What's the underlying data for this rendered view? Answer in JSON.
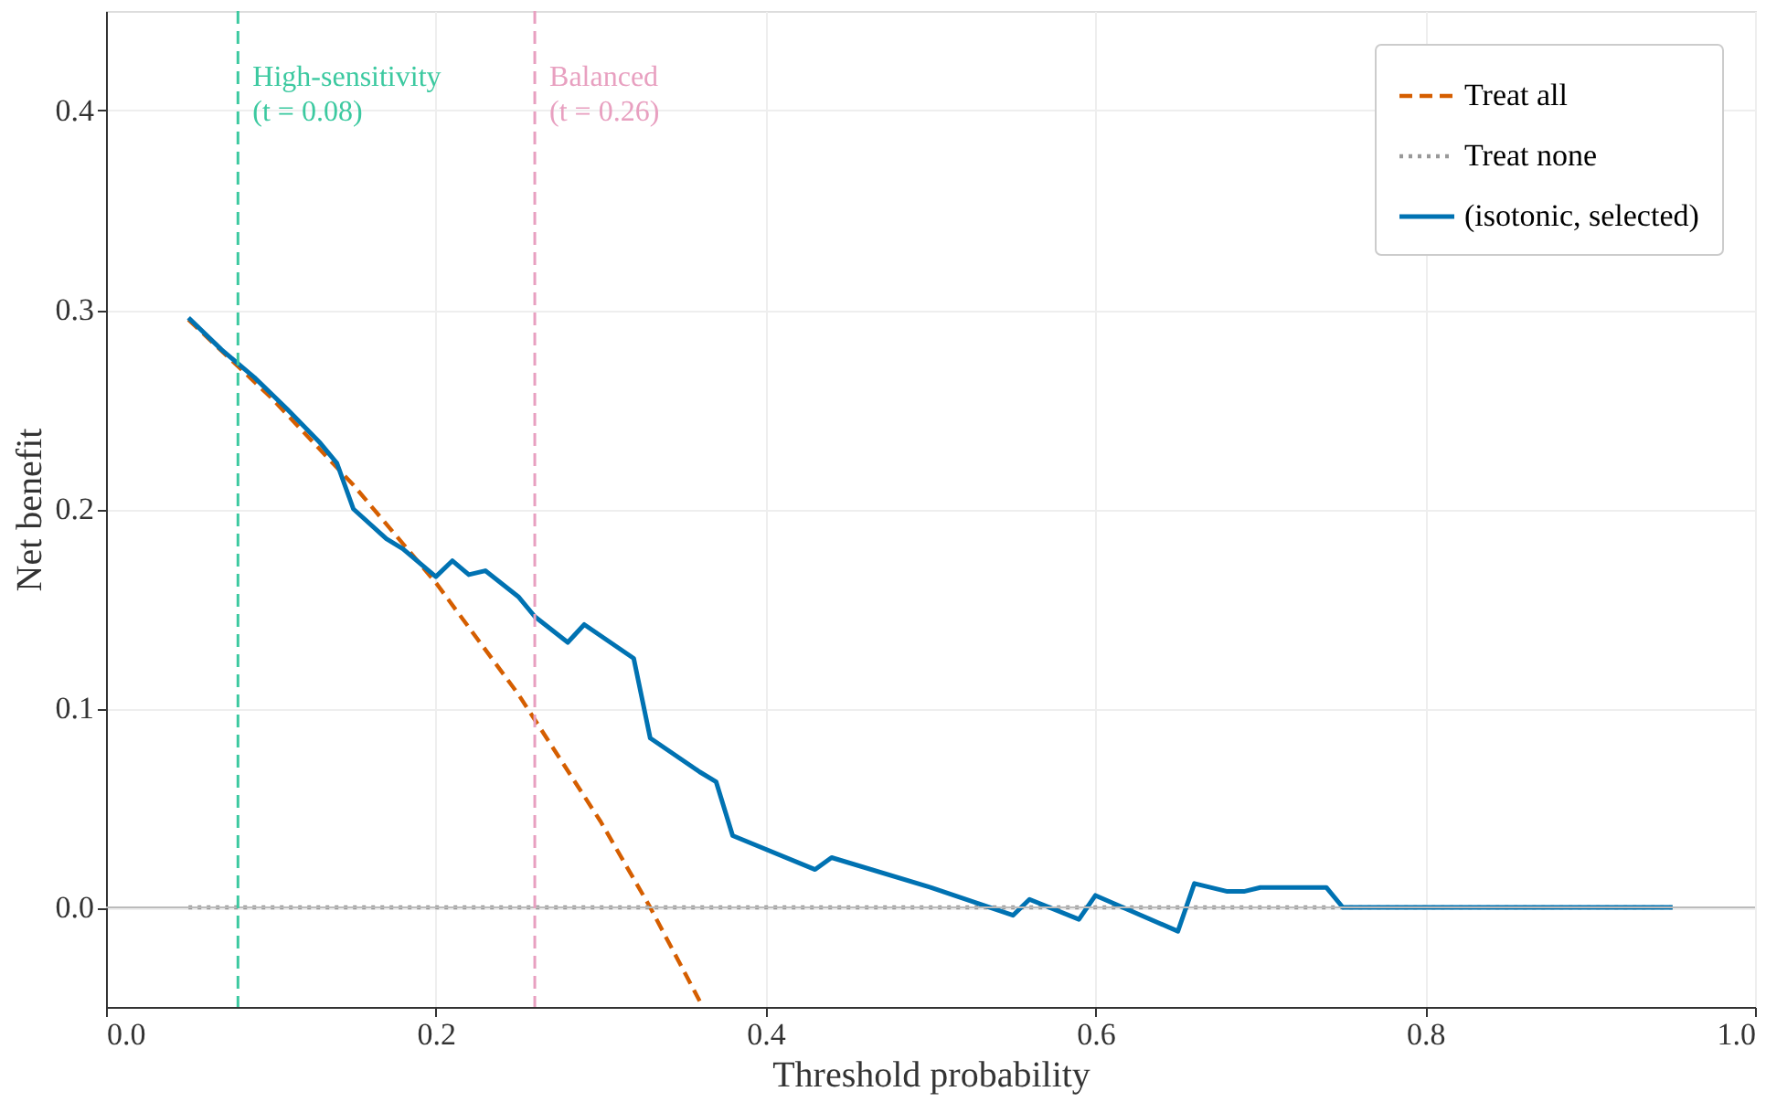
{
  "chart_data": {
    "type": "line",
    "xlabel": "Threshold probability",
    "ylabel": "Net benefit",
    "xlim": [
      0,
      1
    ],
    "xticks": [
      {
        "value": 0,
        "label": "0.0"
      },
      0.2,
      0.4,
      0.6,
      0.8,
      {
        "value": 1,
        "label": "1.0"
      }
    ],
    "ylim": [
      -0.05,
      0.45
    ],
    "yticks": [
      {
        "value": 0,
        "label": "0.0"
      },
      0.1,
      0.2,
      0.3,
      0.4
    ],
    "grid": true,
    "legend": "top right",
    "marker": "none",
    "series": [
      {
        "name": "Treat all",
        "color": "#d55e00",
        "line_style": "dashed",
        "x": [
          0.05,
          0.1,
          0.15,
          0.2,
          0.25,
          0.3,
          0.33,
          0.36
        ],
        "values": [
          0.295,
          0.256,
          0.212,
          0.163,
          0.107,
          0.043,
          0.0,
          -0.047
        ]
      },
      {
        "name": "Treat none",
        "color": "#999999",
        "line_style": "dotted",
        "x": [
          0.05,
          0.95
        ],
        "values": [
          0,
          0
        ]
      },
      {
        "name": "(isotonic, selected)",
        "color": "#0072b2",
        "line_style": "solid",
        "x": [
          0.05,
          0.07,
          0.09,
          0.11,
          0.13,
          0.14,
          0.15,
          0.17,
          0.18,
          0.2,
          0.21,
          0.22,
          0.23,
          0.25,
          0.26,
          0.28,
          0.29,
          0.32,
          0.33,
          0.36,
          0.37,
          0.38,
          0.43,
          0.44,
          0.5,
          0.55,
          0.56,
          0.59,
          0.6,
          0.65,
          0.66,
          0.68,
          0.69,
          0.7,
          0.74,
          0.75,
          0.95
        ],
        "values": [
          0.296,
          0.28,
          0.266,
          0.25,
          0.233,
          0.223,
          0.2,
          0.185,
          0.18,
          0.166,
          0.174,
          0.167,
          0.169,
          0.156,
          0.146,
          0.133,
          0.142,
          0.125,
          0.085,
          0.068,
          0.063,
          0.036,
          0.019,
          0.025,
          0.01,
          -0.004,
          0.004,
          -0.006,
          0.006,
          -0.012,
          0.012,
          0.008,
          0.008,
          0.01,
          0.01,
          0.0,
          0.0
        ]
      }
    ],
    "ref_lines": [
      {
        "axis": "x",
        "value": 0.08,
        "label": "High-sensitivity (t = 0.08)",
        "color": "#3cc9a0",
        "line_style": "dashed"
      },
      {
        "axis": "x",
        "value": 0.26,
        "label": "Balanced (t = 0.26)",
        "color": "#e8a0c0",
        "line_style": "dashed"
      }
    ]
  }
}
